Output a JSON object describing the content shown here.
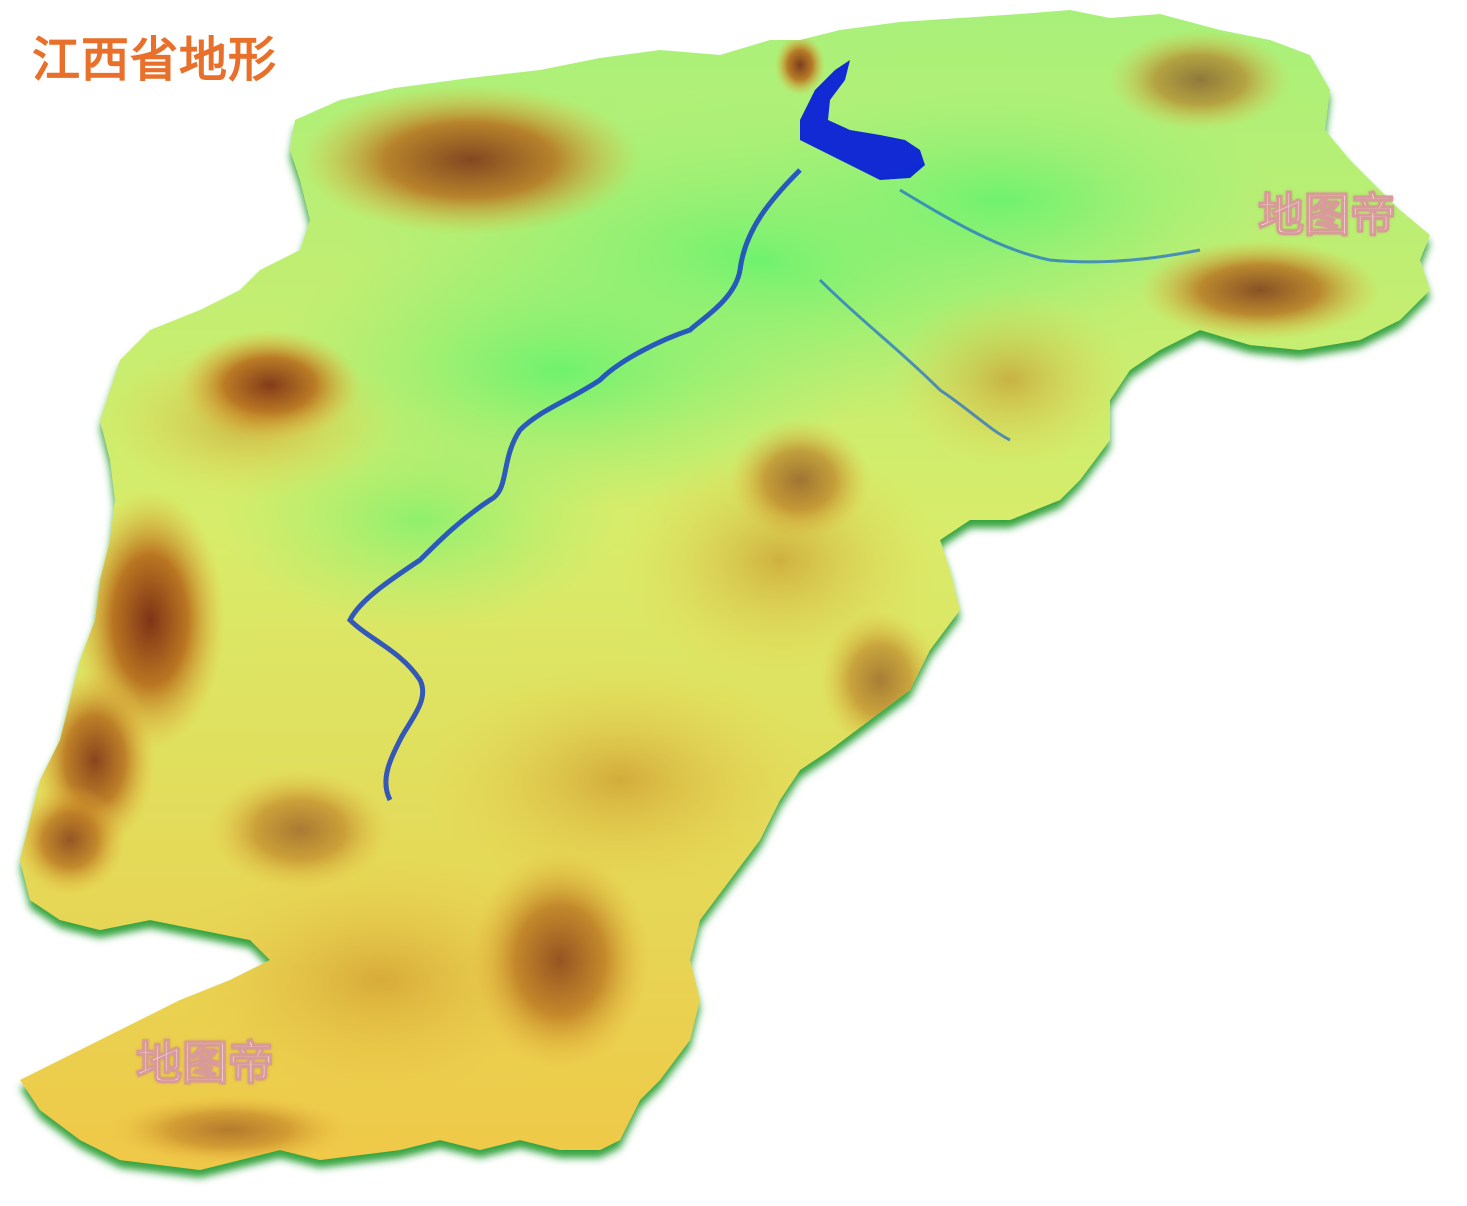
{
  "map": {
    "title": "江西省地形",
    "watermarks": [
      "地图帝",
      "地图帝"
    ],
    "colors": {
      "title": "#e8702a",
      "lowland": "#6fe86a",
      "plain": "#a8f07a",
      "hills": "#f2d84a",
      "mountains": "#c8851e",
      "peaks": "#6e2410",
      "edge": "#1faa30",
      "water": "#0a1fd8"
    },
    "features": {
      "lake": "poyang-lake",
      "rivers": [
        "gan-river",
        "xin-river",
        "fu-river"
      ]
    }
  }
}
